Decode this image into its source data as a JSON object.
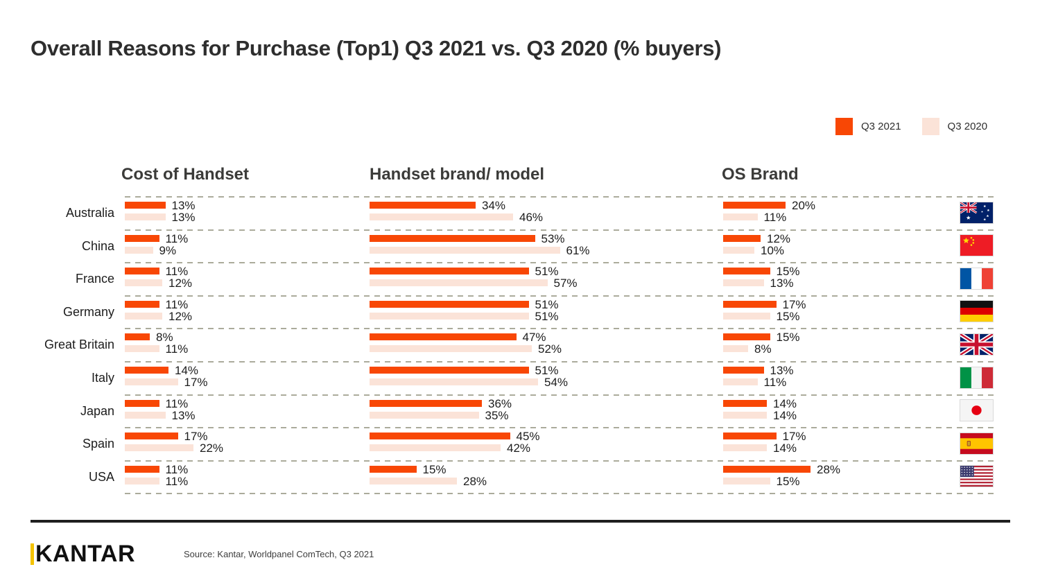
{
  "title": "Overall Reasons for Purchase (Top1) Q3 2021 vs. Q3 2020 (% buyers)",
  "legend": {
    "items": [
      {
        "label": "Q3 2021",
        "color": "#f84705"
      },
      {
        "label": "Q3 2020",
        "color": "#fbe3d8"
      }
    ]
  },
  "chart_data": {
    "type": "bar",
    "orientation": "horizontal",
    "unit": "%",
    "title": "Overall Reasons for Purchase (Top1) Q3 2021 vs. Q3 2020 (% buyers)",
    "legend_position": "top-right",
    "grid": "dashed-row-separators",
    "categories": [
      "Australia",
      "China",
      "France",
      "Germany",
      "Great Britain",
      "Italy",
      "Japan",
      "Spain",
      "USA"
    ],
    "flags": [
      "australia",
      "china",
      "france",
      "germany",
      "great-britain",
      "italy",
      "japan",
      "spain",
      "usa"
    ],
    "series_names": [
      "Q3 2021",
      "Q3 2020"
    ],
    "series_colors": [
      "#f84705",
      "#fbe3d8"
    ],
    "groups": [
      {
        "name": "Cost of Handset",
        "series": [
          {
            "name": "Q3 2021",
            "values": [
              13,
              11,
              11,
              11,
              8,
              14,
              11,
              17,
              11
            ]
          },
          {
            "name": "Q3 2020",
            "values": [
              13,
              9,
              12,
              12,
              11,
              17,
              13,
              22,
              11
            ]
          }
        ]
      },
      {
        "name": "Handset brand/ model",
        "series": [
          {
            "name": "Q3 2021",
            "values": [
              34,
              53,
              51,
              51,
              47,
              51,
              36,
              45,
              15
            ]
          },
          {
            "name": "Q3 2020",
            "values": [
              46,
              61,
              57,
              51,
              52,
              54,
              35,
              42,
              28
            ]
          }
        ]
      },
      {
        "name": "OS Brand",
        "series": [
          {
            "name": "Q3 2021",
            "values": [
              20,
              12,
              15,
              17,
              15,
              13,
              14,
              17,
              28
            ]
          },
          {
            "name": "Q3 2020",
            "values": [
              11,
              10,
              13,
              15,
              8,
              11,
              14,
              14,
              15
            ]
          }
        ]
      }
    ]
  },
  "footer": {
    "brand": "KANTAR",
    "source": "Source: Kantar, Worldpanel ComTech, Q3 2021"
  }
}
